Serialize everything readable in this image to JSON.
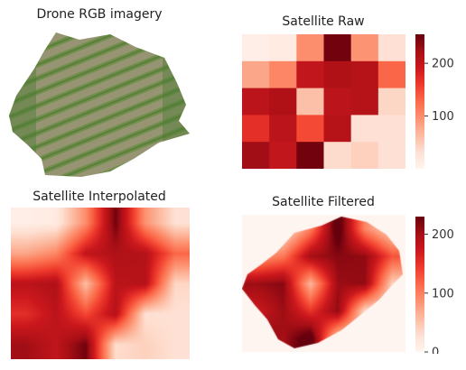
{
  "panels": {
    "drone": {
      "title": "Drone RGB imagery"
    },
    "raw": {
      "title": "Satellite Raw"
    },
    "interp": {
      "title": "Satellite Interpolated"
    },
    "filtered": {
      "title": "Satellite Filtered"
    }
  },
  "chart_data": [
    {
      "type": "image",
      "title": "Drone RGB imagery",
      "content": "drone orthophoto of crop field with vegetation rows (irregular field boundary)"
    },
    {
      "type": "heatmap",
      "title": "Satellite Raw",
      "colormap": "Reds",
      "grid": false,
      "matrix": [
        [
          10,
          15,
          100,
          250,
          95,
          30
        ],
        [
          80,
          105,
          200,
          215,
          210,
          130
        ],
        [
          205,
          215,
          60,
          205,
          210,
          40
        ],
        [
          170,
          205,
          150,
          210,
          30,
          30
        ],
        [
          225,
          200,
          250,
          35,
          45,
          30
        ]
      ],
      "colorbar": {
        "ticks": [
          100,
          200
        ],
        "range": [
          0,
          255
        ]
      }
    },
    {
      "type": "heatmap",
      "title": "Satellite Interpolated",
      "colormap": "Reds",
      "grid": false,
      "matrix": [
        [
          10,
          15,
          100,
          250,
          95,
          30
        ],
        [
          80,
          105,
          200,
          215,
          210,
          130
        ],
        [
          205,
          215,
          60,
          205,
          210,
          40
        ],
        [
          170,
          205,
          150,
          210,
          30,
          30
        ],
        [
          225,
          200,
          250,
          35,
          45,
          30
        ]
      ],
      "interpolation": "bilinear"
    },
    {
      "type": "heatmap",
      "title": "Satellite Filtered",
      "colormap": "Reds",
      "grid": false,
      "matrix": [
        [
          10,
          15,
          100,
          250,
          95,
          30
        ],
        [
          80,
          105,
          200,
          215,
          210,
          130
        ],
        [
          205,
          215,
          60,
          205,
          210,
          40
        ],
        [
          170,
          205,
          150,
          210,
          30,
          30
        ],
        [
          225,
          200,
          250,
          35,
          45,
          30
        ]
      ],
      "interpolation": "bilinear",
      "mask": "field boundary",
      "colorbar": {
        "ticks": [
          0,
          100,
          200
        ],
        "range": [
          0,
          230
        ]
      }
    }
  ]
}
